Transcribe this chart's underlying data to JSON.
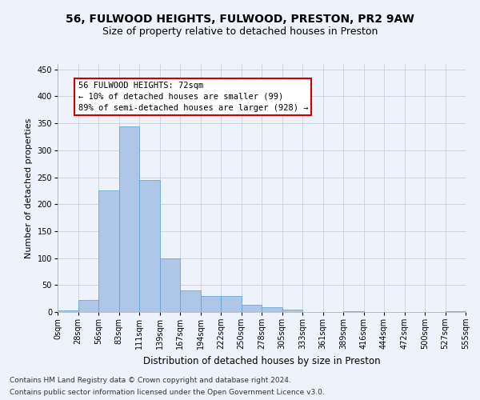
{
  "title": "56, FULWOOD HEIGHTS, FULWOOD, PRESTON, PR2 9AW",
  "subtitle": "Size of property relative to detached houses in Preston",
  "xlabel": "Distribution of detached houses by size in Preston",
  "ylabel": "Number of detached properties",
  "bar_values": [
    3,
    23,
    225,
    345,
    245,
    100,
    40,
    30,
    30,
    13,
    9,
    5,
    0,
    0,
    2,
    0,
    0,
    0,
    0,
    1
  ],
  "bar_labels": [
    "0sqm",
    "28sqm",
    "56sqm",
    "83sqm",
    "111sqm",
    "139sqm",
    "167sqm",
    "194sqm",
    "222sqm",
    "250sqm",
    "278sqm",
    "305sqm",
    "333sqm",
    "361sqm",
    "389sqm",
    "416sqm",
    "444sqm",
    "472sqm",
    "500sqm",
    "527sqm",
    "555sqm"
  ],
  "bar_color": "#aec6e8",
  "bar_edge_color": "#5a9fd4",
  "annotation_text_line1": "56 FULWOOD HEIGHTS: 72sqm",
  "annotation_text_line2": "← 10% of detached houses are smaller (99)",
  "annotation_text_line3": "89% of semi-detached houses are larger (928) →",
  "annotation_box_color": "#ffffff",
  "annotation_border_color": "#cc0000",
  "ylim": [
    0,
    460
  ],
  "yticks": [
    0,
    50,
    100,
    150,
    200,
    250,
    300,
    350,
    400,
    450
  ],
  "grid_color": "#c8d0e0",
  "background_color": "#eef2fa",
  "footer_line1": "Contains HM Land Registry data © Crown copyright and database right 2024.",
  "footer_line2": "Contains public sector information licensed under the Open Government Licence v3.0.",
  "title_fontsize": 10,
  "subtitle_fontsize": 9,
  "xlabel_fontsize": 8.5,
  "ylabel_fontsize": 8,
  "tick_fontsize": 7,
  "footer_fontsize": 6.5,
  "ann_fontsize": 7.5
}
